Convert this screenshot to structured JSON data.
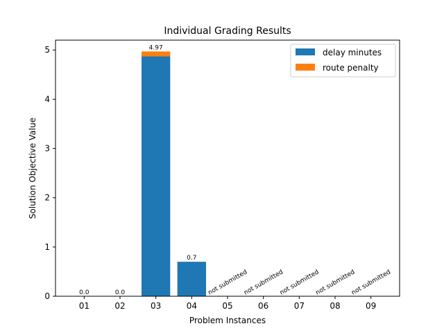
{
  "chart_data": {
    "type": "bar",
    "title": "Individual Grading Results",
    "xlabel": "Problem Instances",
    "ylabel": "Solution Objective Value",
    "categories": [
      "01",
      "02",
      "03",
      "04",
      "05",
      "06",
      "07",
      "08",
      "09"
    ],
    "series": [
      {
        "name": "delay minutes",
        "color": "#1f77b4",
        "values": [
          0.0,
          0.0,
          4.87,
          0.7,
          0,
          0,
          0,
          0,
          0
        ]
      },
      {
        "name": "route penalty",
        "color": "#ff7f0e",
        "values": [
          0.0,
          0.0,
          0.1,
          0.0,
          0,
          0,
          0,
          0,
          0
        ]
      }
    ],
    "bar_labels": [
      "0.0",
      "0.0",
      "4.97",
      "0.7",
      "not submitted",
      "not submitted",
      "not submitted",
      "not submitted",
      "not submitted"
    ],
    "ylim": [
      0,
      5.2
    ],
    "yticks": [
      0,
      1,
      2,
      3,
      4,
      5
    ],
    "grid": false,
    "legend_position": "top-right"
  }
}
